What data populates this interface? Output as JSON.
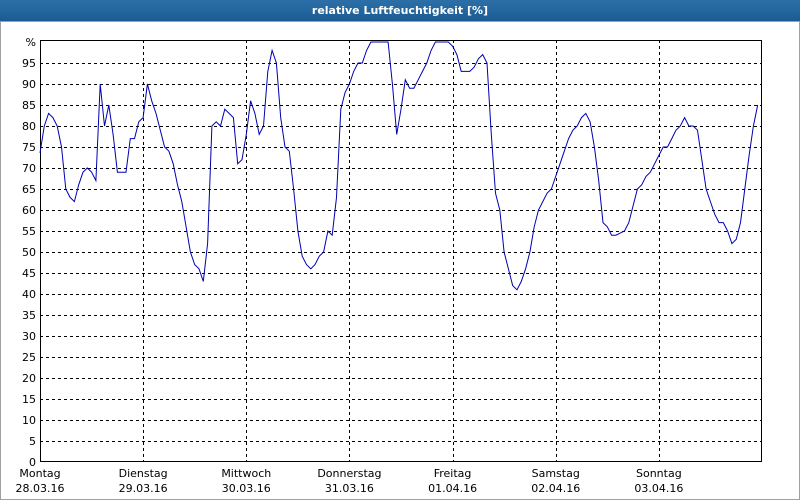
{
  "chart_data": {
    "type": "line",
    "title": "relative Luftfeuchtigkeit [%]",
    "x": [
      0,
      1,
      2,
      3,
      4,
      5,
      6,
      7,
      8,
      9,
      10,
      11,
      12,
      13,
      14,
      15,
      16,
      17,
      18,
      19,
      20,
      21,
      22,
      23,
      24,
      25,
      26,
      27,
      28,
      29,
      30,
      31,
      32,
      33,
      34,
      35,
      36,
      37,
      38,
      39,
      40,
      41,
      42,
      43,
      44,
      45,
      46,
      47,
      48,
      49,
      50,
      51,
      52,
      53,
      54,
      55,
      56,
      57,
      58,
      59,
      60,
      61,
      62,
      63,
      64,
      65,
      66,
      67,
      68,
      69,
      70,
      71,
      72,
      73,
      74,
      75,
      76,
      77,
      78,
      79,
      80,
      81,
      82,
      83,
      84,
      85,
      86,
      87,
      88,
      89,
      90,
      91,
      92,
      93,
      94,
      95,
      96,
      97,
      98,
      99,
      100,
      101,
      102,
      103,
      104,
      105,
      106,
      107,
      108,
      109,
      110,
      111,
      112,
      113,
      114,
      115,
      116,
      117,
      118,
      119,
      120,
      121,
      122,
      123,
      124,
      125,
      126,
      127,
      128,
      129,
      130,
      131,
      132,
      133,
      134,
      135,
      136,
      137,
      138,
      139,
      140,
      141,
      142,
      143,
      144,
      145,
      146,
      147,
      148,
      149,
      150,
      151,
      152,
      153,
      154,
      155,
      156,
      157,
      158,
      159,
      160,
      161,
      162,
      163,
      164,
      165,
      166,
      167
    ],
    "series": [
      {
        "name": "relative Luftfeuchtigkeit",
        "color": "#0000b0",
        "values": [
          73.6,
          80,
          83,
          82,
          80,
          75,
          65,
          63,
          62,
          66,
          69,
          70,
          69,
          67,
          90,
          80,
          85,
          78,
          69,
          69,
          69,
          77,
          77,
          81,
          82,
          90,
          86,
          83,
          79,
          75,
          74,
          71,
          66,
          62,
          56,
          50,
          47,
          46,
          43,
          52,
          80,
          81,
          80,
          84,
          83,
          82,
          71,
          72,
          78,
          86,
          83,
          78,
          80,
          93,
          98,
          95,
          82,
          75,
          74,
          65,
          55,
          49,
          47,
          46,
          47,
          49,
          50,
          55,
          54,
          63,
          84,
          88,
          90,
          93,
          95,
          95,
          98,
          100,
          100,
          100,
          100,
          100,
          90,
          78,
          84,
          91,
          89,
          89,
          91,
          93,
          95,
          98,
          100,
          100,
          100,
          100,
          99,
          97,
          93,
          93,
          93,
          94,
          96,
          97,
          95,
          78,
          64,
          60,
          50,
          46,
          42,
          41,
          43,
          46,
          50,
          56,
          60,
          62,
          64,
          65,
          68,
          71,
          74,
          77,
          79,
          80,
          82,
          83,
          81,
          75,
          67,
          57,
          56,
          54,
          54,
          54.5,
          55,
          57,
          61,
          65,
          66,
          68,
          69,
          71,
          73,
          75,
          75,
          77,
          79,
          80,
          82,
          80,
          80,
          79,
          72,
          65,
          62,
          59,
          57,
          57,
          55,
          52,
          53,
          57,
          65,
          73,
          80,
          85
        ]
      }
    ],
    "xlim": [
      0,
      168
    ],
    "xticks": [
      {
        "value": 0,
        "label": [
          "Montag",
          "28.03.16"
        ]
      },
      {
        "value": 24,
        "label": [
          "Dienstag",
          "29.03.16"
        ]
      },
      {
        "value": 48,
        "label": [
          "Mittwoch",
          "30.03.16"
        ]
      },
      {
        "value": 72,
        "label": [
          "Donnerstag",
          "31.03.16"
        ]
      },
      {
        "value": 96,
        "label": [
          "Freitag",
          "01.04.16"
        ]
      },
      {
        "value": 120,
        "label": [
          "Samstag",
          "02.04.16"
        ]
      },
      {
        "value": 144,
        "label": [
          "Sonntag",
          "03.04.16"
        ]
      }
    ],
    "ylim": [
      0,
      100
    ],
    "yticks": [
      0,
      5,
      10,
      15,
      20,
      25,
      30,
      35,
      40,
      45,
      50,
      55,
      60,
      65,
      70,
      75,
      80,
      85,
      90,
      95,
      {
        "value": 100,
        "label": "%"
      }
    ],
    "grid": true
  }
}
